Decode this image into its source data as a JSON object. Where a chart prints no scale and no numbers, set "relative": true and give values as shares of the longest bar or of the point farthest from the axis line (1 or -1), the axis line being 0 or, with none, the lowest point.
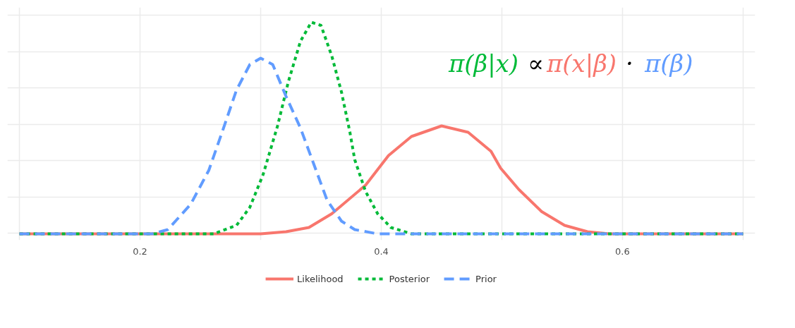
{
  "chart_data": {
    "type": "line",
    "relative": true,
    "xlim": [
      0.09,
      0.71
    ],
    "xticks": [
      {
        "value": 0.1,
        "label": null
      },
      0.2,
      {
        "value": 0.3,
        "label": null
      },
      0.4,
      {
        "value": 0.5,
        "label": null
      },
      0.6,
      {
        "value": 0.7,
        "label": null
      }
    ],
    "grid": true,
    "legend": "bottom",
    "annotations": [
      "π(β|x)",
      "∝",
      "π(x|β)",
      "·",
      "π(β)"
    ],
    "series": [
      {
        "name": "Likelihood",
        "color": "#f8766d",
        "line_style": "solid",
        "x": [
          0.1,
          0.3,
          0.321,
          0.34,
          0.359,
          0.387,
          0.406,
          0.425,
          0.45,
          0.472,
          0.491,
          0.499,
          0.514,
          0.533,
          0.552,
          0.571,
          0.589,
          0.7
        ],
        "values": [
          0,
          0,
          0.01,
          0.03,
          0.095,
          0.23,
          0.37,
          0.46,
          0.51,
          0.48,
          0.39,
          0.31,
          0.21,
          0.105,
          0.04,
          0.01,
          0,
          0
        ]
      },
      {
        "name": "Posterior",
        "color": "#00ba38",
        "line_style": "dotted",
        "x": [
          0.1,
          0.261,
          0.28,
          0.291,
          0.302,
          0.314,
          0.323,
          0.333,
          0.342,
          0.35,
          0.359,
          0.367,
          0.374,
          0.378,
          0.387,
          0.397,
          0.408,
          0.425,
          0.7
        ],
        "values": [
          0,
          0,
          0.04,
          0.125,
          0.28,
          0.51,
          0.72,
          0.91,
          1.0,
          0.985,
          0.84,
          0.67,
          0.48,
          0.35,
          0.2,
          0.095,
          0.03,
          0,
          0
        ]
      },
      {
        "name": "Prior",
        "color": "#619cff",
        "line_style": "dashed",
        "x": [
          0.1,
          0.21,
          0.223,
          0.242,
          0.257,
          0.268,
          0.28,
          0.291,
          0.3,
          0.31,
          0.321,
          0.333,
          0.344,
          0.355,
          0.367,
          0.378,
          0.397,
          0.7
        ],
        "values": [
          0,
          0,
          0.02,
          0.14,
          0.3,
          0.48,
          0.68,
          0.8,
          0.83,
          0.8,
          0.65,
          0.5,
          0.33,
          0.16,
          0.06,
          0.02,
          0,
          0
        ]
      }
    ]
  }
}
